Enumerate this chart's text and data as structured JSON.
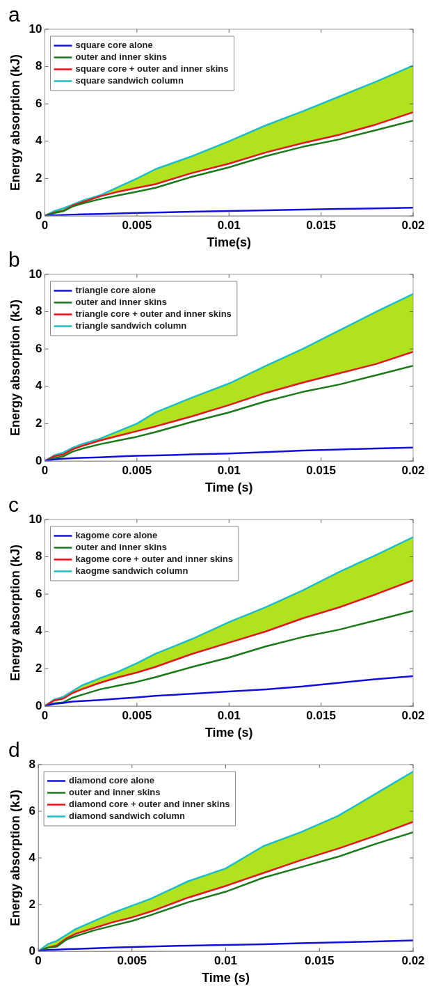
{
  "chart_data": [
    {
      "type": "line",
      "title": "a",
      "xlabel": "Time(s)",
      "ylabel": "Energy absorption (kJ)",
      "xlim": [
        0,
        0.02
      ],
      "xticks": [
        0,
        0.005,
        0.01,
        0.015,
        0.02
      ],
      "ylim": [
        0,
        10
      ],
      "yticks": [
        0,
        2,
        4,
        6,
        8,
        10
      ],
      "legend": "top left",
      "marker": "none",
      "x": [
        0,
        0.0005,
        0.001,
        0.0015,
        0.002,
        0.003,
        0.004,
        0.005,
        0.006,
        0.008,
        0.01,
        0.012,
        0.014,
        0.016,
        0.018,
        0.02
      ],
      "series": [
        {
          "name": "square core alone",
          "color": "#1010d8",
          "values": [
            0,
            0.03,
            0.05,
            0.07,
            0.08,
            0.1,
            0.13,
            0.16,
            0.18,
            0.22,
            0.26,
            0.3,
            0.34,
            0.37,
            0.4,
            0.44
          ]
        },
        {
          "name": "outer and inner skins",
          "color": "#1a7a1a",
          "values": [
            0,
            0.15,
            0.25,
            0.5,
            0.65,
            0.9,
            1.1,
            1.3,
            1.5,
            2.1,
            2.6,
            3.2,
            3.7,
            4.1,
            4.6,
            5.1
          ]
        },
        {
          "name": "square core + outer and inner skins",
          "color": "#e01818",
          "values": [
            0,
            0.18,
            0.27,
            0.55,
            0.72,
            1.05,
            1.3,
            1.5,
            1.7,
            2.3,
            2.8,
            3.4,
            3.9,
            4.35,
            4.9,
            5.55
          ]
        },
        {
          "name": "square sandwich column",
          "color": "#20bcc8",
          "values": [
            0,
            0.25,
            0.4,
            0.6,
            0.8,
            1.1,
            1.55,
            2.0,
            2.5,
            3.2,
            4.0,
            4.85,
            5.6,
            6.4,
            7.2,
            8.05
          ],
          "lower": [
            0,
            0.18,
            0.27,
            0.55,
            0.72,
            1.05,
            1.3,
            1.5,
            1.7,
            2.3,
            2.8,
            3.4,
            3.9,
            4.35,
            4.9,
            5.55
          ],
          "upper": [
            0,
            0.25,
            0.4,
            0.6,
            0.8,
            1.1,
            1.55,
            2.0,
            2.5,
            3.2,
            4.0,
            4.85,
            5.6,
            6.4,
            7.2,
            8.05
          ]
        }
      ]
    },
    {
      "type": "line",
      "title": "b",
      "xlabel": "Time (s)",
      "ylabel": "Energy absorption (kJ)",
      "xlim": [
        0,
        0.02
      ],
      "xticks": [
        0,
        0.005,
        0.01,
        0.015,
        0.02
      ],
      "ylim": [
        0,
        10
      ],
      "yticks": [
        0,
        2,
        4,
        6,
        8,
        10
      ],
      "legend": "top left",
      "marker": "none",
      "x": [
        0,
        0.0005,
        0.001,
        0.0015,
        0.002,
        0.003,
        0.004,
        0.005,
        0.006,
        0.008,
        0.01,
        0.012,
        0.014,
        0.016,
        0.018,
        0.02
      ],
      "series": [
        {
          "name": "triangle core alone",
          "color": "#1010d8",
          "values": [
            0,
            0.08,
            0.12,
            0.15,
            0.17,
            0.2,
            0.24,
            0.28,
            0.3,
            0.35,
            0.4,
            0.48,
            0.56,
            0.62,
            0.67,
            0.72
          ]
        },
        {
          "name": "outer and inner skins",
          "color": "#1a7a1a",
          "values": [
            0,
            0.15,
            0.25,
            0.5,
            0.65,
            0.9,
            1.1,
            1.3,
            1.55,
            2.1,
            2.6,
            3.2,
            3.7,
            4.1,
            4.6,
            5.1
          ]
        },
        {
          "name": "triangle core + outer and inner skins",
          "color": "#e01818",
          "values": [
            0,
            0.25,
            0.35,
            0.62,
            0.8,
            1.1,
            1.35,
            1.6,
            1.85,
            2.4,
            3.0,
            3.65,
            4.2,
            4.7,
            5.2,
            5.85
          ]
        },
        {
          "name": "triangle sandwich column",
          "color": "#20bcc8",
          "values": [
            0,
            0.3,
            0.45,
            0.7,
            0.9,
            1.2,
            1.6,
            2.0,
            2.6,
            3.4,
            4.15,
            5.1,
            6.0,
            7.0,
            8.0,
            8.95
          ],
          "lower": [
            0,
            0.25,
            0.35,
            0.62,
            0.8,
            1.1,
            1.35,
            1.6,
            1.85,
            2.4,
            3.0,
            3.65,
            4.2,
            4.7,
            5.2,
            5.85
          ],
          "upper": [
            0,
            0.3,
            0.45,
            0.7,
            0.9,
            1.2,
            1.6,
            2.0,
            2.6,
            3.4,
            4.15,
            5.1,
            6.0,
            7.0,
            8.0,
            8.95
          ]
        }
      ]
    },
    {
      "type": "line",
      "title": "c",
      "xlabel": "Time (s)",
      "ylabel": "Energy absorption (kJ)",
      "xlim": [
        0,
        0.02
      ],
      "xticks": [
        0,
        0.005,
        0.01,
        0.015,
        0.02
      ],
      "ylim": [
        0,
        10
      ],
      "yticks": [
        0,
        2,
        4,
        6,
        8,
        10
      ],
      "legend": "top left",
      "marker": "none",
      "x": [
        0,
        0.0005,
        0.001,
        0.0015,
        0.002,
        0.003,
        0.004,
        0.005,
        0.006,
        0.008,
        0.01,
        0.012,
        0.014,
        0.016,
        0.018,
        0.02
      ],
      "series": [
        {
          "name": "kagome core alone",
          "color": "#1010d8",
          "values": [
            0,
            0.12,
            0.17,
            0.24,
            0.27,
            0.33,
            0.4,
            0.47,
            0.55,
            0.66,
            0.78,
            0.9,
            1.05,
            1.25,
            1.45,
            1.6
          ]
        },
        {
          "name": "outer and inner skins",
          "color": "#1a7a1a",
          "values": [
            0,
            0.15,
            0.2,
            0.45,
            0.6,
            0.9,
            1.1,
            1.3,
            1.55,
            2.1,
            2.6,
            3.2,
            3.7,
            4.1,
            4.6,
            5.1
          ]
        },
        {
          "name": "kagome core + outer and inner skins",
          "color": "#e01818",
          "values": [
            0,
            0.3,
            0.4,
            0.7,
            0.9,
            1.25,
            1.55,
            1.8,
            2.1,
            2.8,
            3.4,
            4.0,
            4.7,
            5.3,
            6.0,
            6.75
          ]
        },
        {
          "name": "kaogme sandwich column",
          "color": "#20bcc8",
          "values": [
            0,
            0.35,
            0.5,
            0.8,
            1.1,
            1.5,
            1.85,
            2.3,
            2.8,
            3.6,
            4.5,
            5.3,
            6.2,
            7.2,
            8.1,
            9.05
          ],
          "lower": [
            0,
            0.3,
            0.4,
            0.7,
            0.9,
            1.25,
            1.55,
            1.8,
            2.1,
            2.8,
            3.4,
            4.0,
            4.7,
            5.3,
            6.0,
            6.75
          ],
          "upper": [
            0,
            0.35,
            0.5,
            0.8,
            1.1,
            1.5,
            1.85,
            2.3,
            2.8,
            3.6,
            4.5,
            5.3,
            6.2,
            7.2,
            8.1,
            9.05
          ]
        }
      ]
    },
    {
      "type": "line",
      "title": "d",
      "xlabel": "Time (s)",
      "ylabel": "Energy absorption (kJ)",
      "xlim": [
        0,
        0.02
      ],
      "xticks": [
        0,
        0.005,
        0.01,
        0.015,
        0.02
      ],
      "ylim": [
        0,
        8
      ],
      "yticks": [
        0,
        2,
        4,
        6,
        8
      ],
      "legend": "top left",
      "marker": "none",
      "x": [
        0,
        0.0005,
        0.001,
        0.0015,
        0.002,
        0.003,
        0.004,
        0.005,
        0.006,
        0.008,
        0.01,
        0.012,
        0.014,
        0.016,
        0.018,
        0.02
      ],
      "series": [
        {
          "name": "diamond core alone",
          "color": "#1010d8",
          "values": [
            0,
            0.05,
            0.07,
            0.09,
            0.1,
            0.13,
            0.16,
            0.18,
            0.2,
            0.24,
            0.27,
            0.3,
            0.34,
            0.38,
            0.42,
            0.46
          ]
        },
        {
          "name": "outer and inner skins",
          "color": "#1a7a1a",
          "values": [
            0,
            0.15,
            0.2,
            0.5,
            0.65,
            0.9,
            1.1,
            1.3,
            1.55,
            2.1,
            2.55,
            3.15,
            3.6,
            4.05,
            4.6,
            5.1
          ]
        },
        {
          "name": "diamond core + outer and inner skins",
          "color": "#e01818",
          "values": [
            0,
            0.15,
            0.25,
            0.55,
            0.75,
            1.0,
            1.25,
            1.45,
            1.7,
            2.3,
            2.8,
            3.35,
            3.9,
            4.4,
            4.95,
            5.55
          ]
        },
        {
          "name": "diamond sandwich column",
          "color": "#20bcc8",
          "values": [
            0,
            0.3,
            0.45,
            0.7,
            0.95,
            1.3,
            1.65,
            1.95,
            2.25,
            3.0,
            3.55,
            4.5,
            5.1,
            5.8,
            6.75,
            7.7
          ],
          "lower": [
            0,
            0.15,
            0.25,
            0.55,
            0.75,
            1.0,
            1.25,
            1.45,
            1.7,
            2.3,
            2.8,
            3.35,
            3.9,
            4.4,
            4.95,
            5.55
          ],
          "upper": [
            0,
            0.3,
            0.45,
            0.7,
            0.95,
            1.3,
            1.65,
            1.95,
            2.25,
            3.0,
            3.55,
            4.5,
            5.1,
            5.8,
            6.75,
            7.7
          ]
        }
      ]
    }
  ]
}
